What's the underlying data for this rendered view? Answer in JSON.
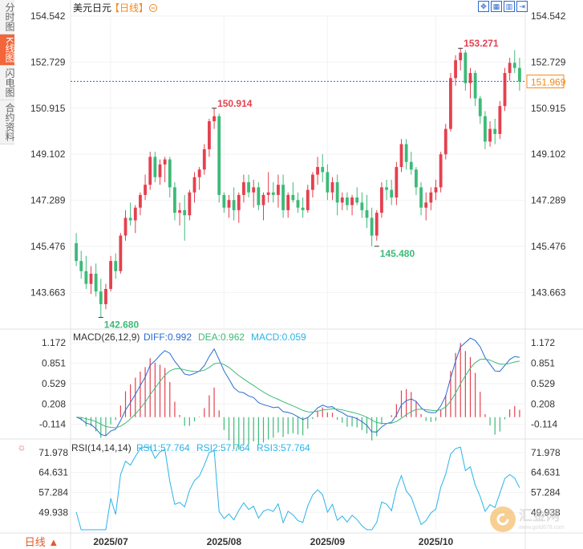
{
  "title": "美元日元",
  "period_bracket": "【日线】",
  "period_icon": "circle-minus-icon",
  "side_tabs": [
    "分时图",
    "K线图",
    "闪电图",
    "合约资料"
  ],
  "active_tab": 1,
  "toolbar_icons": [
    "expand-icon",
    "grid-icon",
    "bar-chart-icon",
    "play-next-icon"
  ],
  "period_button": "日线 ▲",
  "watermark": {
    "main": "汇金网",
    "sub": "www.gold678.com"
  },
  "colors": {
    "up": "#e5404f",
    "down": "#3dba79",
    "diff": "#2a6bd1",
    "dea": "#3dba79",
    "rsi": "#2bb3e8",
    "last_price": "#f08a1c"
  },
  "chart_data": {
    "type": "candlestick",
    "price_axis": {
      "ticks": [
        "154.542",
        "152.729",
        "150.915",
        "149.102",
        "147.289",
        "145.476",
        "143.663"
      ],
      "range": [
        142.22,
        154.542
      ]
    },
    "x_labels": [
      {
        "label": "2025/07",
        "index": 7
      },
      {
        "label": "2025/08",
        "index": 30
      },
      {
        "label": "2025/09",
        "index": 51
      },
      {
        "label": "2025/10",
        "index": 73
      }
    ],
    "annotations": {
      "high": {
        "value": "153.271",
        "index": 78
      },
      "low": {
        "value": "142.680",
        "index": 5
      },
      "local_high": {
        "value": "150.914",
        "index": 28
      },
      "local_low": {
        "value": "145.480",
        "index": 61
      },
      "last_price": "151.969"
    },
    "ohlc": [
      [
        145.6,
        146.0,
        144.7,
        144.9
      ],
      [
        144.9,
        145.3,
        144.2,
        144.5
      ],
      [
        144.5,
        145.1,
        143.8,
        144.0
      ],
      [
        144.0,
        144.7,
        143.6,
        144.4
      ],
      [
        144.4,
        144.8,
        143.5,
        143.7
      ],
      [
        143.7,
        144.2,
        142.68,
        143.2
      ],
      [
        143.2,
        144.0,
        143.0,
        143.8
      ],
      [
        143.8,
        145.1,
        143.7,
        144.9
      ],
      [
        144.9,
        145.2,
        144.2,
        144.5
      ],
      [
        144.5,
        146.0,
        144.4,
        145.9
      ],
      [
        145.9,
        146.9,
        145.7,
        146.6
      ],
      [
        146.6,
        147.2,
        146.3,
        146.5
      ],
      [
        146.5,
        147.1,
        146.0,
        147.0
      ],
      [
        147.0,
        147.6,
        146.7,
        147.5
      ],
      [
        147.5,
        148.3,
        147.3,
        147.9
      ],
      [
        147.9,
        149.2,
        147.7,
        149.0
      ],
      [
        149.0,
        149.2,
        148.0,
        148.2
      ],
      [
        148.2,
        148.9,
        147.9,
        148.7
      ],
      [
        148.7,
        149.0,
        148.0,
        148.9
      ],
      [
        148.9,
        149.0,
        147.4,
        147.8
      ],
      [
        147.8,
        148.0,
        146.5,
        146.8
      ],
      [
        146.8,
        147.2,
        146.3,
        146.9
      ],
      [
        146.9,
        147.5,
        145.7,
        146.7
      ],
      [
        146.7,
        147.7,
        146.5,
        147.6
      ],
      [
        147.6,
        148.4,
        147.2,
        148.2
      ],
      [
        148.2,
        148.6,
        147.7,
        148.5
      ],
      [
        148.5,
        149.5,
        148.3,
        149.3
      ],
      [
        149.3,
        150.5,
        149.0,
        150.4
      ],
      [
        150.4,
        150.914,
        150.1,
        150.6
      ],
      [
        150.6,
        150.7,
        147.2,
        147.5
      ],
      [
        147.5,
        147.6,
        146.8,
        147.0
      ],
      [
        147.0,
        147.5,
        146.6,
        147.3
      ],
      [
        147.3,
        147.8,
        146.5,
        146.9
      ],
      [
        146.9,
        147.6,
        146.4,
        147.5
      ],
      [
        147.5,
        148.3,
        147.2,
        148.0
      ],
      [
        148.0,
        148.3,
        147.4,
        147.6
      ],
      [
        147.6,
        148.1,
        147.0,
        147.8
      ],
      [
        147.8,
        148.0,
        146.9,
        147.1
      ],
      [
        147.1,
        147.6,
        146.5,
        147.5
      ],
      [
        147.5,
        148.4,
        147.2,
        147.6
      ],
      [
        147.6,
        148.0,
        147.2,
        147.5
      ],
      [
        147.5,
        148.3,
        147.0,
        147.9
      ],
      [
        147.9,
        148.3,
        146.6,
        146.9
      ],
      [
        146.9,
        147.6,
        146.6,
        147.5
      ],
      [
        147.5,
        148.0,
        147.2,
        147.3
      ],
      [
        147.3,
        147.6,
        146.8,
        147.0
      ],
      [
        147.0,
        147.4,
        146.6,
        146.9
      ],
      [
        146.9,
        147.9,
        146.8,
        147.7
      ],
      [
        147.7,
        148.4,
        147.4,
        148.3
      ],
      [
        148.3,
        149.0,
        147.9,
        148.6
      ],
      [
        148.6,
        149.1,
        148.0,
        148.4
      ],
      [
        148.4,
        148.7,
        147.3,
        147.6
      ],
      [
        147.6,
        148.2,
        147.3,
        148.0
      ],
      [
        148.0,
        148.3,
        146.7,
        147.2
      ],
      [
        147.2,
        147.6,
        146.9,
        147.4
      ],
      [
        147.4,
        147.6,
        146.9,
        147.1
      ],
      [
        147.1,
        147.5,
        146.7,
        147.4
      ],
      [
        147.4,
        147.8,
        147.1,
        147.2
      ],
      [
        147.2,
        147.6,
        146.6,
        146.9
      ],
      [
        146.9,
        147.5,
        146.2,
        146.6
      ],
      [
        146.6,
        147.0,
        145.48,
        145.9
      ],
      [
        145.9,
        146.9,
        145.7,
        146.8
      ],
      [
        146.8,
        148.0,
        146.6,
        147.8
      ],
      [
        147.8,
        148.1,
        147.3,
        147.7
      ],
      [
        147.7,
        148.1,
        147.1,
        147.4
      ],
      [
        147.4,
        148.8,
        147.1,
        148.6
      ],
      [
        148.6,
        149.7,
        148.4,
        149.5
      ],
      [
        149.5,
        149.7,
        148.5,
        148.8
      ],
      [
        148.8,
        149.2,
        148.3,
        148.5
      ],
      [
        148.5,
        148.6,
        147.5,
        147.8
      ],
      [
        147.8,
        148.0,
        146.7,
        147.0
      ],
      [
        147.0,
        147.6,
        146.5,
        147.2
      ],
      [
        147.2,
        147.8,
        146.9,
        147.6
      ],
      [
        147.6,
        148.1,
        147.3,
        147.8
      ],
      [
        147.8,
        149.2,
        147.6,
        149.1
      ],
      [
        149.1,
        150.3,
        148.9,
        150.1
      ],
      [
        150.1,
        152.3,
        150.0,
        152.1
      ],
      [
        152.1,
        153.0,
        151.8,
        152.8
      ],
      [
        152.8,
        153.271,
        152.4,
        153.1
      ],
      [
        153.1,
        153.2,
        151.6,
        151.9
      ],
      [
        151.9,
        152.5,
        151.3,
        152.3
      ],
      [
        152.3,
        152.4,
        151.0,
        151.3
      ],
      [
        151.3,
        151.4,
        150.3,
        150.6
      ],
      [
        150.6,
        150.8,
        149.3,
        149.6
      ],
      [
        149.6,
        150.4,
        149.4,
        150.1
      ],
      [
        150.1,
        150.5,
        149.5,
        149.9
      ],
      [
        149.9,
        151.2,
        149.7,
        151.0
      ],
      [
        151.0,
        152.5,
        150.8,
        152.3
      ],
      [
        152.3,
        152.9,
        152.0,
        152.7
      ],
      [
        152.7,
        153.2,
        152.3,
        152.5
      ],
      [
        152.5,
        152.9,
        151.6,
        151.969
      ]
    ],
    "macd": {
      "label": "MACD(26,12,9)",
      "diff_label": "DIFF:0.992",
      "dea_label": "DEA:0.962",
      "macd_label": "MACD:0.059",
      "ticks": [
        "1.172",
        "0.851",
        "0.529",
        "0.208",
        "-0.114"
      ],
      "range": [
        -0.32,
        1.25
      ]
    },
    "rsi": {
      "label": "RSI(14,14,14)",
      "rsi1_label": "RSI1:57.764",
      "rsi2_label": "RSI2:57.764",
      "rsi3_label": "RSI3:57.764",
      "ticks": [
        "71.978",
        "64.631",
        "57.284",
        "49.938"
      ],
      "range": [
        43.5,
        74.0
      ]
    }
  }
}
